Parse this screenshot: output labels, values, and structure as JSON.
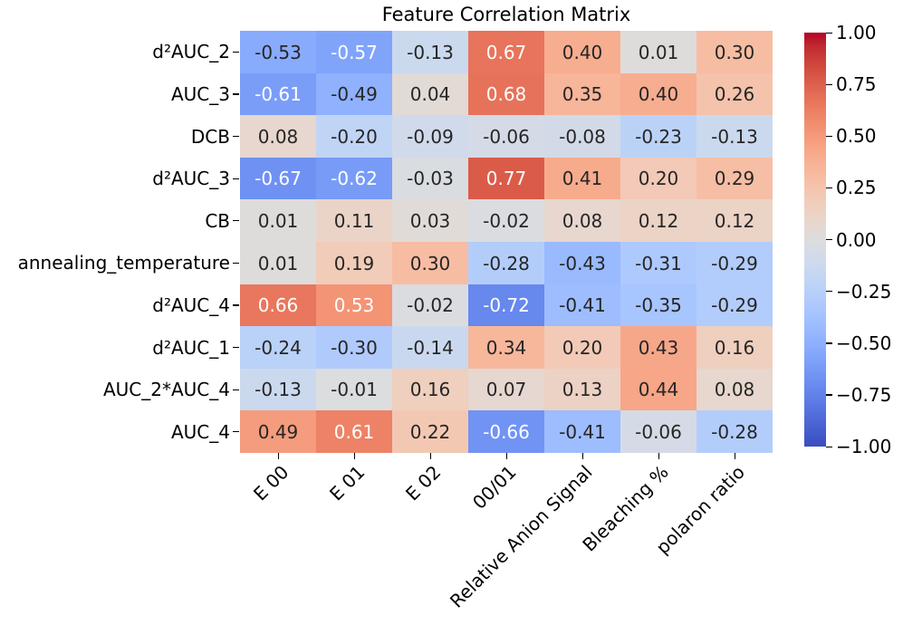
{
  "figure": {
    "background": "#ffffff"
  },
  "chart_data": {
    "type": "heatmap",
    "title": "Feature Correlation Matrix",
    "rows": [
      "d²AUC_2",
      "AUC_3",
      "DCB",
      "d²AUC_3",
      "CB",
      "annealing_temperature",
      "d²AUC_4",
      "d²AUC_1",
      "AUC_2*AUC_4",
      "AUC_4"
    ],
    "columns": [
      "E 00",
      "E 01",
      "E 02",
      "00/01",
      "Relative Anion Signal",
      "Bleaching %",
      "polaron ratio"
    ],
    "values": [
      [
        -0.53,
        -0.57,
        -0.13,
        0.67,
        0.4,
        0.01,
        0.3
      ],
      [
        -0.61,
        -0.49,
        0.04,
        0.68,
        0.35,
        0.4,
        0.26
      ],
      [
        0.08,
        -0.2,
        -0.09,
        -0.06,
        -0.08,
        -0.23,
        -0.13
      ],
      [
        -0.67,
        -0.62,
        -0.03,
        0.77,
        0.41,
        0.2,
        0.29
      ],
      [
        0.01,
        0.11,
        0.03,
        -0.02,
        0.08,
        0.12,
        0.12
      ],
      [
        0.01,
        0.19,
        0.3,
        -0.28,
        -0.43,
        -0.31,
        -0.29
      ],
      [
        0.66,
        0.53,
        -0.02,
        -0.72,
        -0.41,
        -0.35,
        -0.29
      ],
      [
        -0.24,
        -0.3,
        -0.14,
        0.34,
        0.2,
        0.43,
        0.16
      ],
      [
        -0.13,
        -0.01,
        0.16,
        0.07,
        0.13,
        0.44,
        0.08
      ],
      [
        0.49,
        0.61,
        0.22,
        -0.66,
        -0.41,
        -0.06,
        -0.28
      ]
    ],
    "vmin": -1.0,
    "vmax": 1.0,
    "colormap": "coolwarm",
    "grid": false,
    "legend_position": "right-colorbar",
    "colorbar_tick_labels": [
      "1.00",
      "0.75",
      "0.50",
      "0.25",
      "0.00",
      "−0.25",
      "−0.50",
      "−0.75",
      "−1.00"
    ],
    "colorbar_tick_values": [
      1.0,
      0.75,
      0.5,
      0.25,
      0.0,
      -0.25,
      -0.5,
      -0.75,
      -1.0
    ],
    "colors": {
      "annotation_dark": "#262626",
      "annotation_light": "#ffffff",
      "axis_text": "#000000",
      "cmap_min": "#3b4cc0",
      "cmap_mid": "#dddddd",
      "cmap_max": "#b40426"
    }
  }
}
